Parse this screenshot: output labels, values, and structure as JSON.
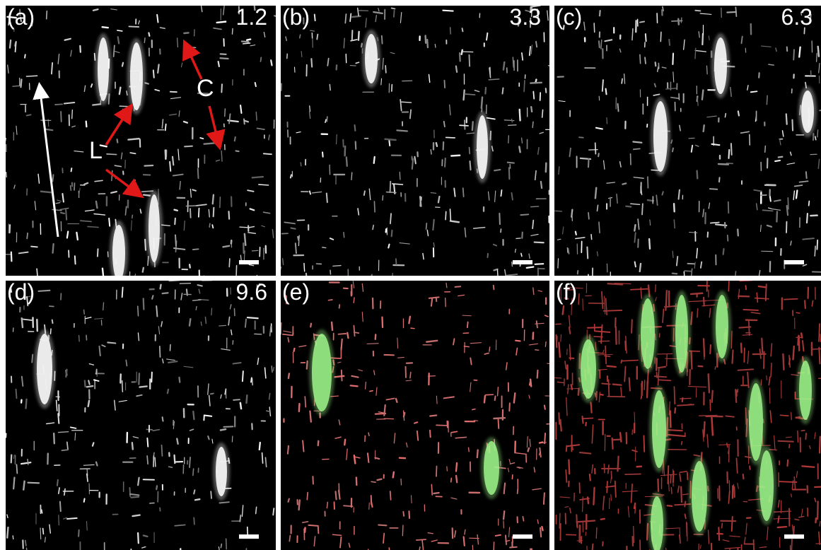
{
  "panels": [
    {
      "label": "(a)",
      "value": "1.2"
    },
    {
      "label": "(b)",
      "value": "3.3"
    },
    {
      "label": "(c)",
      "value": "6.3"
    },
    {
      "label": "(d)",
      "value": "9.6"
    },
    {
      "label": "(e)"
    },
    {
      "label": "(f)"
    }
  ],
  "arrow_labels": [
    "L",
    "C"
  ]
}
